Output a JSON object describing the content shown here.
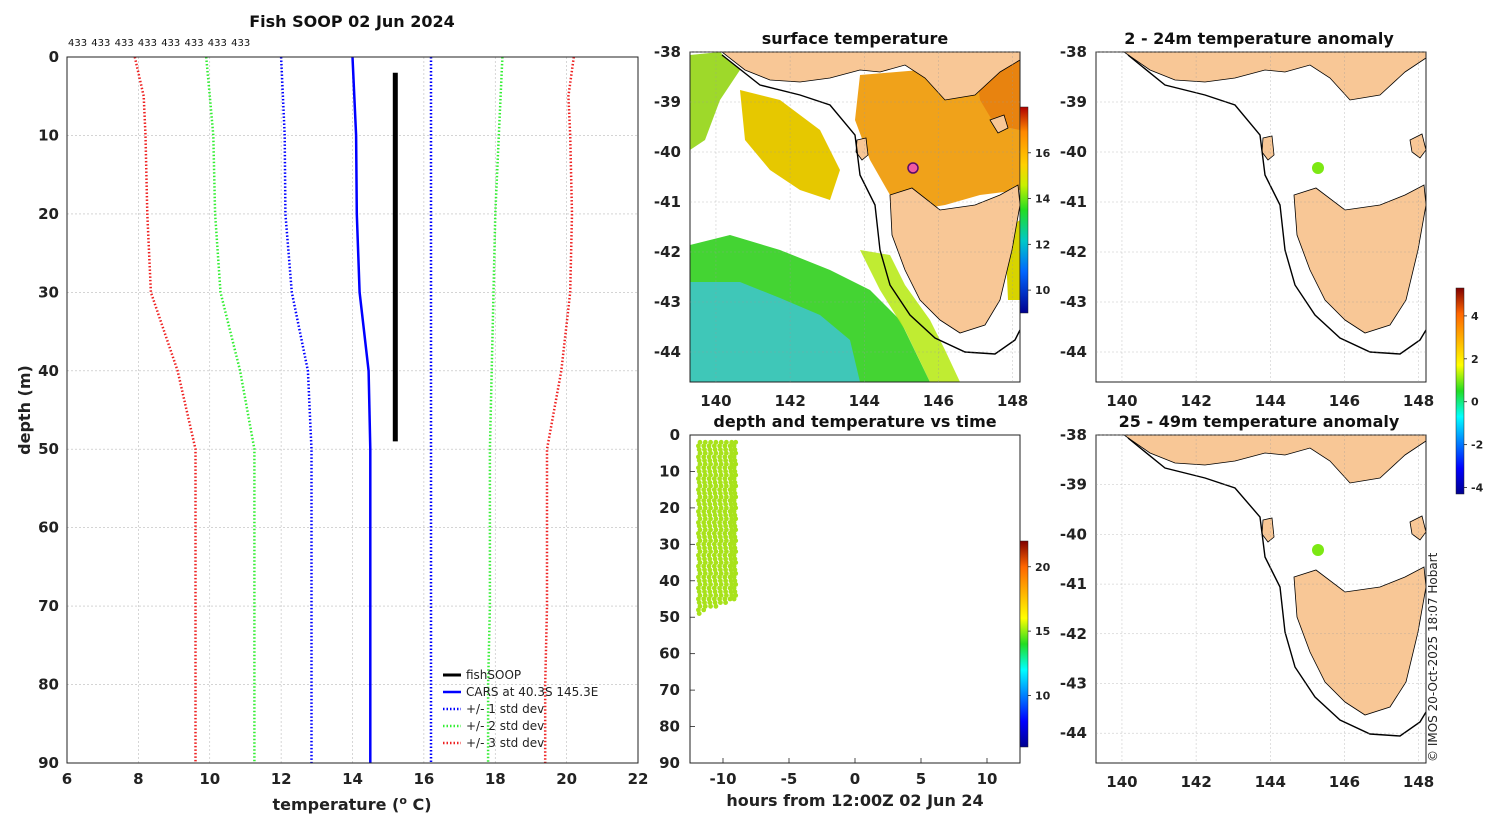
{
  "colors": {
    "land": "#f8c796",
    "fishsoop": "#000000",
    "cars": "#0000ff",
    "std1": "#0000ff",
    "std2": "#33ee33",
    "std3": "#ee2222"
  },
  "chart_data": [
    {
      "type": "line",
      "title": "Fish SOOP 02 Jun 2024",
      "xlabel": "temperature (o C)",
      "ylabel": "depth (m)",
      "xlim": [
        6,
        22
      ],
      "ylim": [
        0,
        90
      ],
      "y_reversed": true,
      "x_ticks": [
        "6",
        "8",
        "10",
        "12",
        "14",
        "16",
        "18",
        "20",
        "22"
      ],
      "y_ticks": [
        "0",
        "10",
        "20",
        "30",
        "40",
        "50",
        "60",
        "70",
        "80",
        "90"
      ],
      "top_annotation": [
        "433",
        "433",
        "433",
        "433",
        "433",
        "433",
        "433",
        "433"
      ],
      "grid": true,
      "legend_position": "bottom-right",
      "series": [
        {
          "name": "fishSOOP",
          "style": "solid-thick",
          "color": "#000000",
          "points": [
            [
              15.2,
              2
            ],
            [
              15.2,
              10
            ],
            [
              15.2,
              20
            ],
            [
              15.2,
              30
            ],
            [
              15.2,
              40
            ],
            [
              15.2,
              45
            ],
            [
              15.2,
              49
            ]
          ]
        },
        {
          "name": "CARS at 40.3S 145.3E",
          "style": "solid",
          "color": "#0000ff",
          "points": [
            [
              14.0,
              0
            ],
            [
              14.05,
              5
            ],
            [
              14.1,
              10
            ],
            [
              14.12,
              20
            ],
            [
              14.2,
              30
            ],
            [
              14.45,
              40
            ],
            [
              14.5,
              50
            ],
            [
              14.5,
              60
            ],
            [
              14.5,
              70
            ],
            [
              14.5,
              80
            ],
            [
              14.5,
              90
            ]
          ]
        },
        {
          "name": "+/- 1 std dev",
          "style": "dotted",
          "color": "#0000ff",
          "points": [
            [
              12.0,
              0
            ],
            [
              12.05,
              5
            ],
            [
              12.1,
              10
            ],
            [
              12.12,
              20
            ],
            [
              12.3,
              30
            ],
            [
              12.75,
              40
            ],
            [
              12.85,
              50
            ],
            [
              12.85,
              60
            ],
            [
              12.85,
              70
            ],
            [
              12.85,
              80
            ],
            [
              12.85,
              90
            ]
          ]
        },
        {
          "name": "+/- 1 std dev",
          "style": "dotted",
          "color": "#0000ff",
          "hide_legend": true,
          "points": [
            [
              16.2,
              0
            ],
            [
              16.2,
              10
            ],
            [
              16.2,
              20
            ],
            [
              16.2,
              30
            ],
            [
              16.2,
              40
            ],
            [
              16.2,
              50
            ],
            [
              16.2,
              60
            ],
            [
              16.2,
              70
            ],
            [
              16.2,
              80
            ],
            [
              16.2,
              90
            ]
          ]
        },
        {
          "name": "+/- 2 std dev",
          "style": "dotted",
          "color": "#33ee33",
          "points": [
            [
              9.9,
              0
            ],
            [
              10.0,
              5
            ],
            [
              10.1,
              10
            ],
            [
              10.15,
              20
            ],
            [
              10.3,
              30
            ],
            [
              10.85,
              40
            ],
            [
              11.25,
              50
            ],
            [
              11.25,
              60
            ],
            [
              11.25,
              70
            ],
            [
              11.25,
              80
            ],
            [
              11.25,
              90
            ]
          ]
        },
        {
          "name": "+/- 2 std dev",
          "style": "dotted",
          "color": "#33ee33",
          "hide_legend": true,
          "points": [
            [
              18.2,
              0
            ],
            [
              18.1,
              10
            ],
            [
              18.0,
              20
            ],
            [
              17.95,
              30
            ],
            [
              17.9,
              40
            ],
            [
              17.85,
              50
            ],
            [
              17.85,
              60
            ],
            [
              17.85,
              70
            ],
            [
              17.8,
              80
            ],
            [
              17.8,
              90
            ]
          ]
        },
        {
          "name": "+/- 3 std dev",
          "style": "dotted",
          "color": "#ee2222",
          "points": [
            [
              7.9,
              0
            ],
            [
              8.15,
              5
            ],
            [
              8.2,
              10
            ],
            [
              8.25,
              20
            ],
            [
              8.35,
              30
            ],
            [
              9.1,
              40
            ],
            [
              9.6,
              50
            ],
            [
              9.6,
              60
            ],
            [
              9.6,
              70
            ],
            [
              9.6,
              80
            ],
            [
              9.6,
              90
            ]
          ]
        },
        {
          "name": "+/- 3 std dev",
          "style": "dotted",
          "color": "#ee2222",
          "hide_legend": true,
          "points": [
            [
              20.2,
              0
            ],
            [
              20.05,
              5
            ],
            [
              20.1,
              10
            ],
            [
              20.15,
              20
            ],
            [
              20.1,
              30
            ],
            [
              19.85,
              40
            ],
            [
              19.45,
              50
            ],
            [
              19.45,
              60
            ],
            [
              19.45,
              70
            ],
            [
              19.4,
              80
            ],
            [
              19.4,
              90
            ]
          ]
        }
      ]
    },
    {
      "type": "heatmap",
      "title": "surface temperature",
      "xlim": [
        139.3,
        148.2
      ],
      "ylim": [
        -44.6,
        -38
      ],
      "x_ticks": [
        "140",
        "142",
        "144",
        "146",
        "148"
      ],
      "y_ticks": [
        "-38",
        "-39",
        "-40",
        "-41",
        "-42",
        "-43",
        "-44"
      ],
      "colorbar": {
        "range": [
          9,
          18
        ],
        "ticks": [
          "10",
          "12",
          "14",
          "16"
        ]
      },
      "profile_location": {
        "lon": 145.3,
        "lat": -40.3
      }
    },
    {
      "type": "scatter",
      "title": "depth and temperature vs time",
      "xlabel": "hours from 12:00Z 02 Jun 24",
      "xlim": [
        -12.5,
        12.5
      ],
      "ylim": [
        0,
        90
      ],
      "y_reversed": true,
      "x_ticks": [
        "-10",
        "-5",
        "0",
        "5",
        "10"
      ],
      "y_ticks": [
        "0",
        "10",
        "20",
        "30",
        "40",
        "50",
        "60",
        "70",
        "80",
        "90"
      ],
      "colorbar": {
        "range": [
          6,
          22
        ],
        "ticks": [
          "10",
          "15",
          "20"
        ]
      },
      "casts": [
        {
          "hour": -11.8,
          "max_depth": 49
        },
        {
          "hour": -11.4,
          "max_depth": 48
        },
        {
          "hour": -11.0,
          "max_depth": 47
        },
        {
          "hour": -10.6,
          "max_depth": 47
        },
        {
          "hour": -10.2,
          "max_depth": 46
        },
        {
          "hour": -9.8,
          "max_depth": 46
        },
        {
          "hour": -9.4,
          "max_depth": 45
        },
        {
          "hour": -9.1,
          "max_depth": 45
        }
      ],
      "cast_min_depth": 2,
      "point_temperature": 15.2
    },
    {
      "type": "heatmap",
      "title": "2 - 24m temperature anomaly",
      "xlim": [
        139.3,
        148.2
      ],
      "ylim": [
        -44.6,
        -38
      ],
      "x_ticks": [
        "140",
        "142",
        "144",
        "146",
        "148"
      ],
      "y_ticks": [
        "-38",
        "-39",
        "-40",
        "-41",
        "-42",
        "-43",
        "-44"
      ],
      "anomaly_point": {
        "lon": 145.3,
        "lat": -40.3,
        "value": 0.2
      }
    },
    {
      "type": "heatmap",
      "title": "25 - 49m temperature anomaly",
      "xlim": [
        139.3,
        148.2
      ],
      "ylim": [
        -44.6,
        -38
      ],
      "x_ticks": [
        "140",
        "142",
        "144",
        "146",
        "148"
      ],
      "y_ticks": [
        "-38",
        "-39",
        "-40",
        "-41",
        "-42",
        "-43",
        "-44"
      ],
      "anomaly_point": {
        "lon": 145.3,
        "lat": -40.3,
        "value": 0.2
      },
      "colorbar": {
        "range": [
          -4.3,
          5.3
        ],
        "ticks": [
          "-4",
          "-2",
          "0",
          "2",
          "4"
        ]
      }
    }
  ],
  "legend": {
    "fishsoop": "fishSOOP",
    "cars": "CARS at 40.3S 145.3E",
    "std1": "+/- 1 std dev",
    "std2": "+/- 2 std dev",
    "std3": "+/- 3 std dev"
  },
  "credit": "© IMOS 20-Oct-2025 18:07 Hobart"
}
